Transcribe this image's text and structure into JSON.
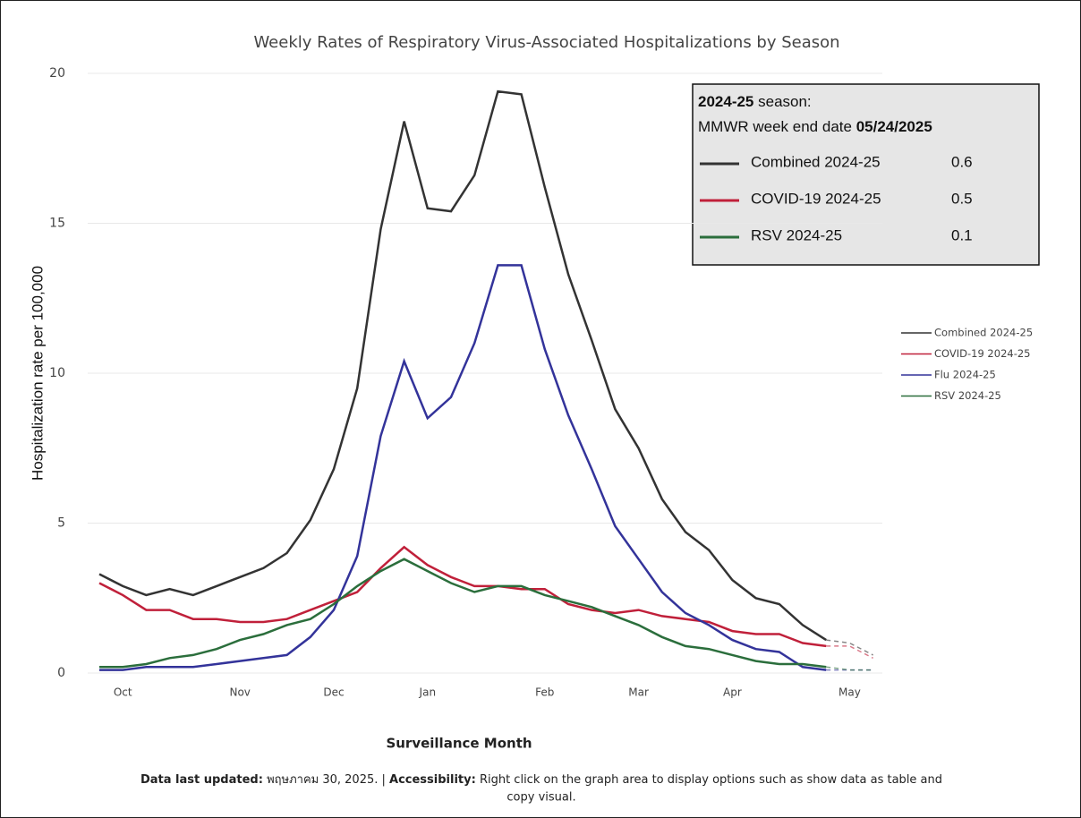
{
  "chart_data": {
    "type": "line",
    "title": "Weekly Rates of Respiratory Virus-Associated Hospitalizations by Season",
    "x_label": "Surveillance Month",
    "y_label": "Hospitalization rate per 100,000",
    "categories": [
      null,
      "Oct",
      null,
      null,
      null,
      null,
      "Nov",
      null,
      null,
      null,
      "Dec",
      null,
      null,
      null,
      "Jan",
      null,
      null,
      null,
      null,
      "Feb",
      null,
      null,
      null,
      "Mar",
      null,
      null,
      null,
      "Apr",
      null,
      null,
      null,
      null,
      "May",
      null
    ],
    "series": [
      {
        "name": "Combined 2024-25",
        "color": "#333333",
        "values": [
          3.3,
          2.9,
          2.6,
          2.8,
          2.6,
          2.9,
          3.2,
          3.5,
          4.0,
          5.1,
          6.8,
          9.5,
          14.8,
          18.4,
          15.5,
          15.4,
          16.6,
          19.4,
          19.3,
          16.2,
          13.3,
          11.1,
          8.8,
          7.5,
          5.8,
          4.7,
          4.1,
          3.1,
          2.5,
          2.3,
          1.6,
          1.1,
          1.0,
          0.6
        ]
      },
      {
        "name": "COVID-19 2024-25",
        "color": "#c0203a",
        "values": [
          3.0,
          2.6,
          2.1,
          2.1,
          1.8,
          1.8,
          1.7,
          1.7,
          1.8,
          2.1,
          2.4,
          2.7,
          3.5,
          4.2,
          3.6,
          3.2,
          2.9,
          2.9,
          2.8,
          2.8,
          2.3,
          2.1,
          2.0,
          2.1,
          1.9,
          1.8,
          1.7,
          1.4,
          1.3,
          1.3,
          1.0,
          0.9,
          0.9,
          0.5
        ]
      },
      {
        "name": "Flu 2024-25",
        "color": "#33339a",
        "values": [
          0.1,
          0.1,
          0.2,
          0.2,
          0.2,
          0.3,
          0.4,
          0.5,
          0.6,
          1.2,
          2.1,
          3.9,
          7.9,
          10.4,
          8.5,
          9.2,
          11.0,
          13.6,
          13.6,
          10.8,
          8.6,
          6.8,
          4.9,
          3.8,
          2.7,
          2.0,
          1.6,
          1.1,
          0.8,
          0.7,
          0.2,
          0.1,
          0.1,
          0.1
        ]
      },
      {
        "name": "RSV 2024-25",
        "color": "#2b6e3c",
        "values": [
          0.2,
          0.2,
          0.3,
          0.5,
          0.6,
          0.8,
          1.1,
          1.3,
          1.6,
          1.8,
          2.3,
          2.9,
          3.4,
          3.8,
          3.4,
          3.0,
          2.7,
          2.9,
          2.9,
          2.6,
          2.4,
          2.2,
          1.9,
          1.6,
          1.2,
          0.9,
          0.8,
          0.6,
          0.4,
          0.3,
          0.3,
          0.2,
          0.1,
          0.1
        ]
      }
    ],
    "dashed_from": 31,
    "ylim": [
      0,
      20
    ],
    "yticks": [
      0,
      5,
      10,
      15,
      20
    ],
    "grid": true,
    "legend": "right",
    "inset": {
      "season": "2024-25",
      "season_suffix": " season:",
      "week_prefix": "MMWR week end date ",
      "week_date": "05/24/2025",
      "rows": [
        {
          "name": "Combined 2024-25",
          "color": "#333333",
          "value": 0.6
        },
        {
          "name": "COVID-19 2024-25",
          "color": "#c0203a",
          "value": 0.5
        },
        {
          "name": "RSV 2024-25",
          "color": "#2b6e3c",
          "value": 0.1
        }
      ]
    },
    "footer": {
      "updated_label": "Data last updated:",
      "updated_text": " พฤษภาคม 30, 2025. | ",
      "access_label": "Accessibility:",
      "access_text": " Right click on the graph area to display options such as show data as table and",
      "access_text_2": "copy visual."
    }
  }
}
